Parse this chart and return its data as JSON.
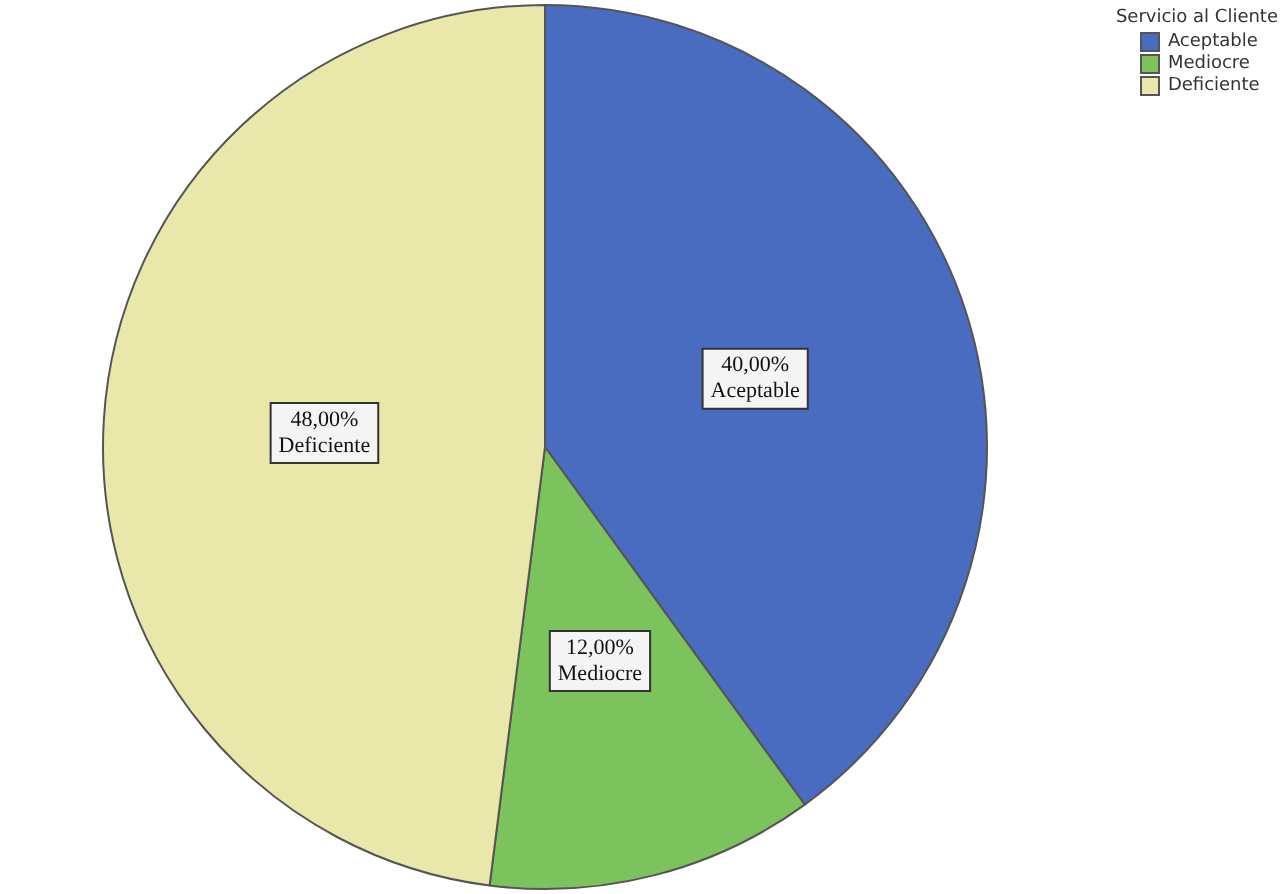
{
  "chart_data": {
    "type": "pie",
    "legend_title": "Servicio al Cliente",
    "legend": "top right",
    "categories": [
      "Aceptable",
      "Mediocre",
      "Deficiente"
    ],
    "values": [
      40,
      12,
      48
    ],
    "colors": [
      "#4a6cc0",
      "#7cc35e",
      "#e9e7aa"
    ],
    "value_labels": [
      "40,00%",
      "12,00%",
      "48,00%"
    ]
  }
}
